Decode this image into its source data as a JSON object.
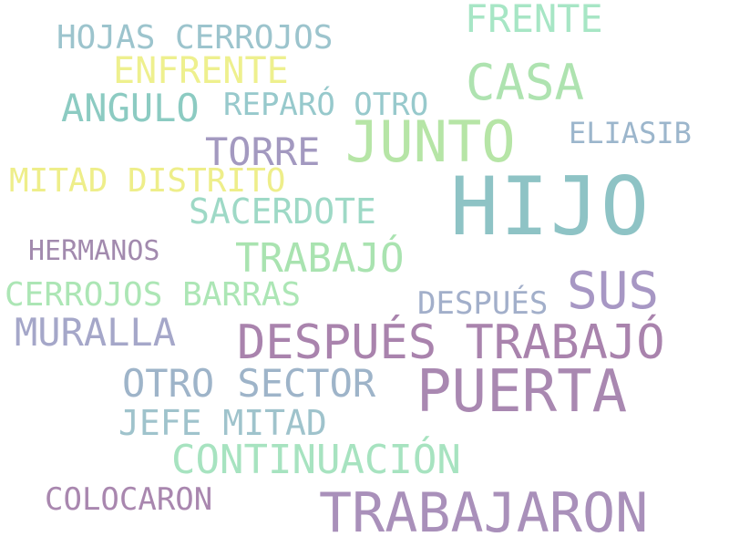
{
  "words": [
    {
      "text": "HIJO",
      "color": "#8ec3c5"
    },
    {
      "text": "PUERTA",
      "color": "#a988b1"
    },
    {
      "text": "JUNTO",
      "color": "#b6e5a6"
    },
    {
      "text": "DESPUÉS TRABAJÓ",
      "color": "#a983ad"
    },
    {
      "text": "TRABAJARON",
      "color": "#a990ba"
    },
    {
      "text": "CASA",
      "color": "#aee3b0"
    },
    {
      "text": "SUS",
      "color": "#a797c4"
    },
    {
      "text": "CONTINUACIÓN",
      "color": "#a7e3c0"
    },
    {
      "text": "TRABAJÓ",
      "color": "#a9e3b0"
    },
    {
      "text": "FRENTE",
      "color": "#a7e6c5"
    },
    {
      "text": "OTRO SECTOR",
      "color": "#9eb4c9"
    },
    {
      "text": "MURALLA",
      "color": "#a5a7c9"
    },
    {
      "text": "ANGULO",
      "color": "#8ccbc2"
    },
    {
      "text": "HOJAS CERROJOS",
      "color": "#9cc4cd"
    },
    {
      "text": "ENFRENTE",
      "color": "#eef08e"
    },
    {
      "text": "TORRE",
      "color": "#a399c0"
    },
    {
      "text": "MITAD DISTRITO",
      "color": "#eeee8a"
    },
    {
      "text": "CERROJOS BARRAS",
      "color": "#ace6b5"
    },
    {
      "text": "SACERDOTE",
      "color": "#9ed9c6"
    },
    {
      "text": "JEFE MITAD",
      "color": "#9fc3cc"
    },
    {
      "text": "REPARÓ OTRO",
      "color": "#97c9cc"
    },
    {
      "text": "DESPUÉS",
      "color": "#a2afca"
    },
    {
      "text": "ELIASIB",
      "color": "#9cb6cc"
    },
    {
      "text": "COLOCARON",
      "color": "#a987af"
    },
    {
      "text": "HERMANOS",
      "color": "#a28aae"
    }
  ]
}
